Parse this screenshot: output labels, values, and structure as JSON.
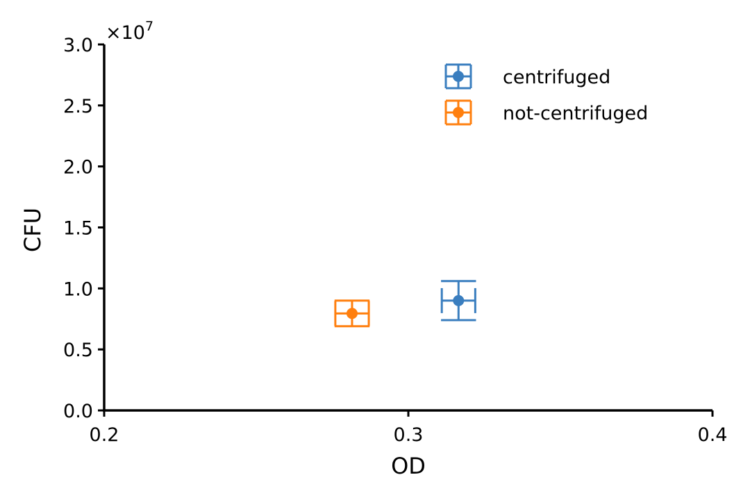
{
  "chart_data": {
    "type": "scatter",
    "title": "",
    "xlabel": "OD",
    "ylabel": "CFU",
    "xlim": [
      0.2,
      0.4
    ],
    "ylim": [
      0,
      30000000
    ],
    "x_ticks": [
      "0.2",
      "0.3",
      "0.4"
    ],
    "y_ticks": [
      "0.0",
      "0.5",
      "1.0",
      "1.5",
      "2.0",
      "2.5",
      "3.0"
    ],
    "y_offset_label": "×10",
    "y_offset_exponent": "7",
    "grid": false,
    "legend_position": "top-right",
    "series": [
      {
        "name": "centrifuged",
        "color": "#3a7ebf",
        "x": 0.3165,
        "y": 9000000,
        "xerr": 0.0055,
        "yerr": 1600000
      },
      {
        "name": "not-centrifuged",
        "color": "#ff7f0e",
        "x": 0.2815,
        "y": 7950000,
        "xerr": 0.0055,
        "yerr": 1050000
      }
    ]
  }
}
